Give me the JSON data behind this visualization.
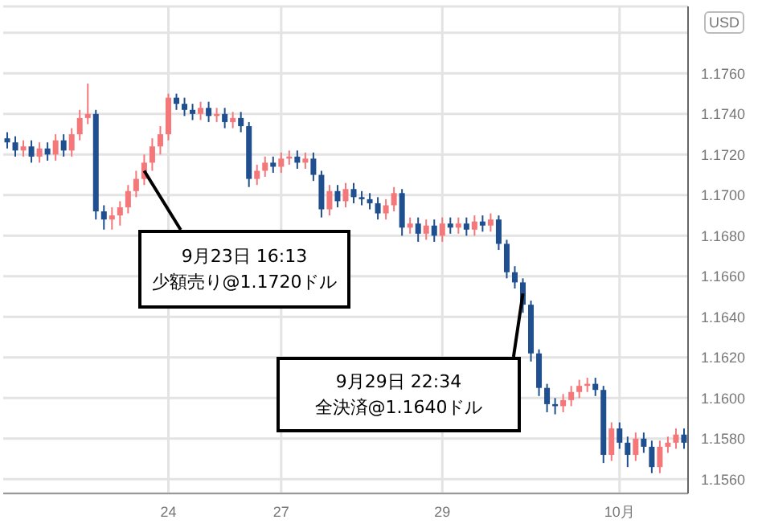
{
  "chart_data": {
    "type": "candlestick",
    "ylabel": "USD",
    "categories": [
      null,
      null,
      null,
      null,
      null,
      null,
      null,
      null,
      null,
      null,
      null,
      null,
      null,
      null,
      null,
      null,
      null,
      null,
      null,
      null,
      "24",
      null,
      null,
      null,
      null,
      null,
      null,
      null,
      null,
      null,
      null,
      null,
      null,
      null,
      "27",
      null,
      null,
      null,
      null,
      null,
      null,
      null,
      null,
      null,
      null,
      null,
      null,
      null,
      null,
      null,
      null,
      null,
      null,
      null,
      "29",
      null,
      null,
      null,
      null,
      null,
      null,
      null,
      null,
      null,
      null,
      null,
      null,
      null,
      null,
      null,
      null,
      null,
      null,
      null,
      null,
      null,
      "10月",
      null,
      null,
      null,
      null,
      null,
      null,
      null,
      null
    ],
    "ohlc": [
      [
        1.1728,
        1.1731,
        1.1723,
        1.1726
      ],
      [
        1.1726,
        1.1729,
        1.1719,
        1.1722
      ],
      [
        1.1722,
        1.1727,
        1.1719,
        1.1724
      ],
      [
        1.1724,
        1.1727,
        1.1716,
        1.1719
      ],
      [
        1.1719,
        1.1726,
        1.1716,
        1.1723
      ],
      [
        1.1723,
        1.1726,
        1.1717,
        1.172
      ],
      [
        1.172,
        1.173,
        1.1717,
        1.1727
      ],
      [
        1.1727,
        1.173,
        1.1719,
        1.1722
      ],
      [
        1.1722,
        1.1733,
        1.1719,
        1.173
      ],
      [
        1.173,
        1.1742,
        1.1727,
        1.1738
      ],
      [
        1.1738,
        1.1755,
        1.1735,
        1.174
      ],
      [
        1.174,
        1.1742,
        1.1688,
        1.1692
      ],
      [
        1.1692,
        1.1695,
        1.1683,
        1.1688
      ],
      [
        1.1688,
        1.1694,
        1.1683,
        1.169
      ],
      [
        1.169,
        1.1697,
        1.1685,
        1.1694
      ],
      [
        1.1694,
        1.1705,
        1.1691,
        1.1702
      ],
      [
        1.1702,
        1.1712,
        1.1699,
        1.1708
      ],
      [
        1.1708,
        1.172,
        1.1705,
        1.1716
      ],
      [
        1.1716,
        1.1728,
        1.1712,
        1.1724
      ],
      [
        1.1724,
        1.1734,
        1.172,
        1.173
      ],
      [
        1.173,
        1.175,
        1.1727,
        1.1748
      ],
      [
        1.1748,
        1.175,
        1.1742,
        1.1745
      ],
      [
        1.1745,
        1.1748,
        1.1739,
        1.1742
      ],
      [
        1.1742,
        1.1745,
        1.1737,
        1.174
      ],
      [
        1.174,
        1.1746,
        1.1737,
        1.1743
      ],
      [
        1.1743,
        1.1746,
        1.1736,
        1.1739
      ],
      [
        1.1739,
        1.1743,
        1.1736,
        1.174
      ],
      [
        1.174,
        1.1743,
        1.1733,
        1.1736
      ],
      [
        1.1736,
        1.1741,
        1.1733,
        1.1738
      ],
      [
        1.1738,
        1.1741,
        1.1731,
        1.1734
      ],
      [
        1.1734,
        1.1736,
        1.1704,
        1.1708
      ],
      [
        1.1708,
        1.1715,
        1.1705,
        1.1712
      ],
      [
        1.1712,
        1.1719,
        1.1709,
        1.1716
      ],
      [
        1.1716,
        1.1719,
        1.1711,
        1.1714
      ],
      [
        1.1714,
        1.1721,
        1.1711,
        1.1718
      ],
      [
        1.1718,
        1.1722,
        1.1715,
        1.1719
      ],
      [
        1.1719,
        1.1722,
        1.1713,
        1.1716
      ],
      [
        1.1716,
        1.1721,
        1.1713,
        1.1718
      ],
      [
        1.1718,
        1.1721,
        1.1707,
        1.171
      ],
      [
        1.171,
        1.1712,
        1.1689,
        1.1693
      ],
      [
        1.1693,
        1.1705,
        1.169,
        1.1702
      ],
      [
        1.1702,
        1.1705,
        1.1694,
        1.1697
      ],
      [
        1.1697,
        1.1706,
        1.1694,
        1.1703
      ],
      [
        1.1703,
        1.1706,
        1.1696,
        1.1699
      ],
      [
        1.1699,
        1.1702,
        1.1695,
        1.1698
      ],
      [
        1.1698,
        1.1701,
        1.1693,
        1.1696
      ],
      [
        1.1696,
        1.1699,
        1.1688,
        1.1691
      ],
      [
        1.1691,
        1.1698,
        1.1688,
        1.1695
      ],
      [
        1.1695,
        1.1704,
        1.1692,
        1.1701
      ],
      [
        1.1701,
        1.1703,
        1.168,
        1.1684
      ],
      [
        1.1684,
        1.1689,
        1.1681,
        1.1686
      ],
      [
        1.1686,
        1.1689,
        1.1677,
        1.1681
      ],
      [
        1.1681,
        1.1688,
        1.1678,
        1.1685
      ],
      [
        1.1685,
        1.1688,
        1.1677,
        1.168
      ],
      [
        1.168,
        1.1689,
        1.1677,
        1.1686
      ],
      [
        1.1686,
        1.1689,
        1.1681,
        1.1684
      ],
      [
        1.1684,
        1.1689,
        1.1681,
        1.1686
      ],
      [
        1.1686,
        1.1689,
        1.168,
        1.1683
      ],
      [
        1.1683,
        1.169,
        1.168,
        1.1687
      ],
      [
        1.1687,
        1.169,
        1.1682,
        1.1685
      ],
      [
        1.1685,
        1.1691,
        1.1682,
        1.1688
      ],
      [
        1.1688,
        1.169,
        1.1673,
        1.1676
      ],
      [
        1.1676,
        1.1678,
        1.1659,
        1.1662
      ],
      [
        1.1662,
        1.1665,
        1.1654,
        1.1657
      ],
      [
        1.1657,
        1.1659,
        1.1642,
        1.1646
      ],
      [
        1.1646,
        1.1648,
        1.1618,
        1.1622
      ],
      [
        1.1622,
        1.1624,
        1.1601,
        1.1605
      ],
      [
        1.1605,
        1.1607,
        1.1593,
        1.1597
      ],
      [
        1.1597,
        1.16,
        1.1592,
        1.1596
      ],
      [
        1.1596,
        1.1602,
        1.1593,
        1.1599
      ],
      [
        1.1599,
        1.1606,
        1.1596,
        1.1603
      ],
      [
        1.1603,
        1.1609,
        1.16,
        1.1606
      ],
      [
        1.1606,
        1.161,
        1.1603,
        1.1607
      ],
      [
        1.1607,
        1.161,
        1.1601,
        1.1604
      ],
      [
        1.1604,
        1.1606,
        1.1568,
        1.1572
      ],
      [
        1.1572,
        1.1588,
        1.1569,
        1.1585
      ],
      [
        1.1585,
        1.1588,
        1.1575,
        1.1578
      ],
      [
        1.1578,
        1.1581,
        1.1566,
        1.1572
      ],
      [
        1.1572,
        1.1583,
        1.1569,
        1.158
      ],
      [
        1.158,
        1.1583,
        1.1573,
        1.1576
      ],
      [
        1.1576,
        1.1579,
        1.1563,
        1.1566
      ],
      [
        1.1566,
        1.1579,
        1.1563,
        1.1576
      ],
      [
        1.1576,
        1.1581,
        1.1573,
        1.1578
      ],
      [
        1.1578,
        1.1585,
        1.1575,
        1.1582
      ],
      [
        1.1582,
        1.1585,
        1.1575,
        1.1578
      ]
    ],
    "colors": [
      "#1f4f8f",
      "#1f4f8f",
      "#f4777a",
      "#1f4f8f",
      "#f4777a",
      "#1f4f8f",
      "#f4777a",
      "#1f4f8f",
      "#f4777a",
      "#f4777a",
      "#f4777a",
      "#1f4f8f",
      "#1f4f8f",
      "#f4777a",
      "#f4777a",
      "#f4777a",
      "#f4777a",
      "#f4777a",
      "#f4777a",
      "#f4777a",
      "#f4777a",
      "#1f4f8f",
      "#1f4f8f",
      "#1f4f8f",
      "#f4777a",
      "#1f4f8f",
      "#f4777a",
      "#1f4f8f",
      "#f4777a",
      "#1f4f8f",
      "#1f4f8f",
      "#f4777a",
      "#f4777a",
      "#1f4f8f",
      "#f4777a",
      "#f4777a",
      "#1f4f8f",
      "#f4777a",
      "#1f4f8f",
      "#1f4f8f",
      "#f4777a",
      "#1f4f8f",
      "#f4777a",
      "#1f4f8f",
      "#1f4f8f",
      "#1f4f8f",
      "#1f4f8f",
      "#f4777a",
      "#f4777a",
      "#1f4f8f",
      "#f4777a",
      "#1f4f8f",
      "#f4777a",
      "#1f4f8f",
      "#f4777a",
      "#1f4f8f",
      "#f4777a",
      "#1f4f8f",
      "#f4777a",
      "#1f4f8f",
      "#f4777a",
      "#1f4f8f",
      "#1f4f8f",
      "#1f4f8f",
      "#1f4f8f",
      "#1f4f8f",
      "#1f4f8f",
      "#1f4f8f",
      "#1f4f8f",
      "#f4777a",
      "#f4777a",
      "#f4777a",
      "#f4777a",
      "#1f4f8f",
      "#1f4f8f",
      "#f4777a",
      "#1f4f8f",
      "#1f4f8f",
      "#f4777a",
      "#1f4f8f",
      "#1f4f8f",
      "#f4777a",
      "#f4777a",
      "#f4777a",
      "#1f4f8f"
    ],
    "ylim": [
      1.1553,
      1.1793
    ],
    "yticks": [
      {
        "value": 1.156,
        "label": "1.1560"
      },
      {
        "value": 1.158,
        "label": "1.1580"
      },
      {
        "value": 1.16,
        "label": "1.1600"
      },
      {
        "value": 1.162,
        "label": "1.1620"
      },
      {
        "value": 1.164,
        "label": "1.1640"
      },
      {
        "value": 1.166,
        "label": "1.1660"
      },
      {
        "value": 1.168,
        "label": "1.1680"
      },
      {
        "value": 1.17,
        "label": "1.1700"
      },
      {
        "value": 1.172,
        "label": "1.1720"
      },
      {
        "value": 1.174,
        "label": "1.1740"
      },
      {
        "value": 1.176,
        "label": "1.1760"
      },
      {
        "value": 1.178,
        "label": null
      }
    ],
    "grid": true,
    "annotations": [
      "9月23日 16:13\n少額売り@1.1720ドル",
      "9月29日 22:34\n全決済@1.1640ドル"
    ]
  }
}
